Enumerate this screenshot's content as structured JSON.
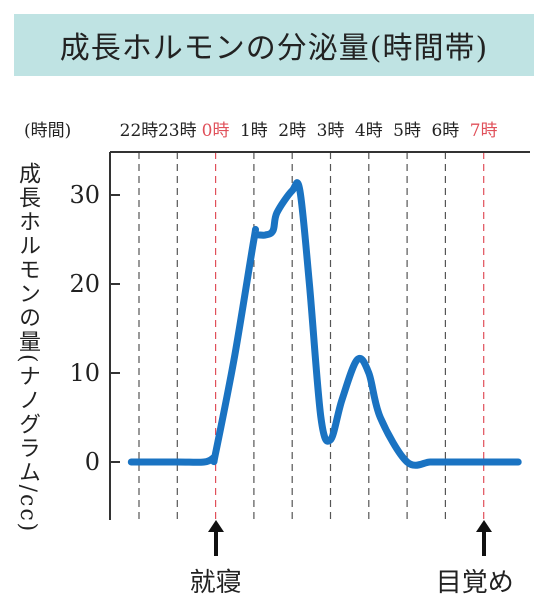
{
  "title": "成長ホルモンの分泌量(時間帯)",
  "chart_data": {
    "type": "line",
    "title": "成長ホルモンの分泌量(時間帯)",
    "xlabel": "(時間)",
    "ylabel": "成長ホルモンの量(ナノグラム/cc)",
    "x_ticks": [
      "22時",
      "23時",
      "0時",
      "1時",
      "2時",
      "3時",
      "4時",
      "5時",
      "6時",
      "7時"
    ],
    "x_ticks_highlight": [
      "0時",
      "7時"
    ],
    "y_ticks": [
      0,
      10,
      20,
      30
    ],
    "ylim": [
      0,
      35
    ],
    "x_unit": "hours from 22時",
    "series": [
      {
        "color": "#1a73c2",
        "x": [
          -0.2,
          1.0,
          1.7,
          1.95,
          2.0,
          2.5,
          3.0,
          3.05,
          3.3,
          3.5,
          3.6,
          4.0,
          4.2,
          4.45,
          4.75,
          5.0,
          5.3,
          5.7,
          6.0,
          6.3,
          7.0,
          7.6,
          8.0,
          8.5,
          9.9
        ],
        "y": [
          0,
          0,
          0,
          0.5,
          1,
          12,
          25,
          25.5,
          25.5,
          26,
          28,
          30.5,
          30.5,
          20,
          5,
          2.5,
          7,
          11.5,
          10,
          5,
          0,
          0,
          0,
          0,
          0
        ]
      }
    ],
    "annotations": [
      {
        "label": "就寝",
        "at": "0時"
      },
      {
        "label": "目覚め",
        "at": "7時"
      }
    ],
    "grid": "vertical dashed at each hour",
    "colors": {
      "axis": "#333333",
      "highlight": "#e0505a",
      "line": "#1a73c2",
      "title_bg": "#bfe3e3"
    }
  }
}
